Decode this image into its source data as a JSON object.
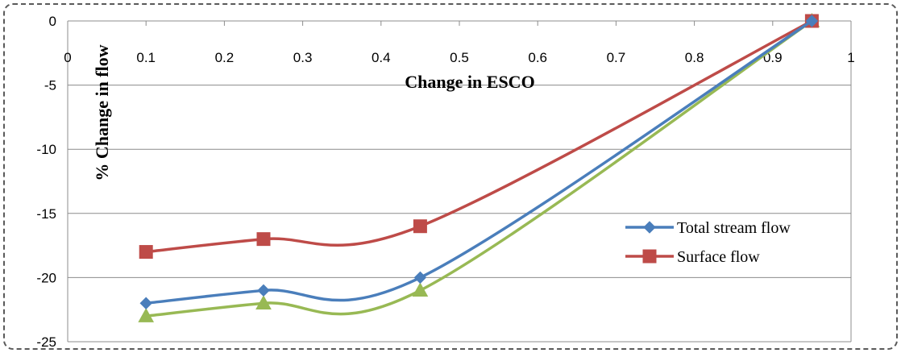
{
  "chart_data": {
    "type": "line",
    "xlabel": "Change in ESCO",
    "ylabel": "% Change in flow",
    "xlim": [
      0,
      1
    ],
    "ylim": [
      -25,
      0
    ],
    "x_ticks": [
      "0",
      "0.1",
      "0.2",
      "0.3",
      "0.4",
      "0.5",
      "0.6",
      "0.7",
      "0.8",
      "0.9",
      "1"
    ],
    "y_ticks": [
      "0",
      "-5",
      "-10",
      "-15",
      "-20",
      "-25"
    ],
    "grid": "horizontal",
    "legend_position": "right",
    "series": [
      {
        "name": "Total stream flow",
        "color": "#4a7ebb",
        "marker": "diamond",
        "x": [
          0.1,
          0.25,
          0.45,
          0.95
        ],
        "y": [
          -22,
          -21,
          -20,
          0
        ],
        "in_legend": true
      },
      {
        "name": "Surface flow",
        "color": "#be4b48",
        "marker": "square",
        "x": [
          0.1,
          0.25,
          0.45,
          0.95
        ],
        "y": [
          -18,
          -17,
          -16,
          0
        ],
        "in_legend": true
      },
      {
        "name": "",
        "color": "#98b954",
        "marker": "triangle",
        "x": [
          0.1,
          0.25,
          0.45,
          0.95
        ],
        "y": [
          -23,
          -22,
          -21,
          0
        ],
        "in_legend": false
      }
    ]
  }
}
